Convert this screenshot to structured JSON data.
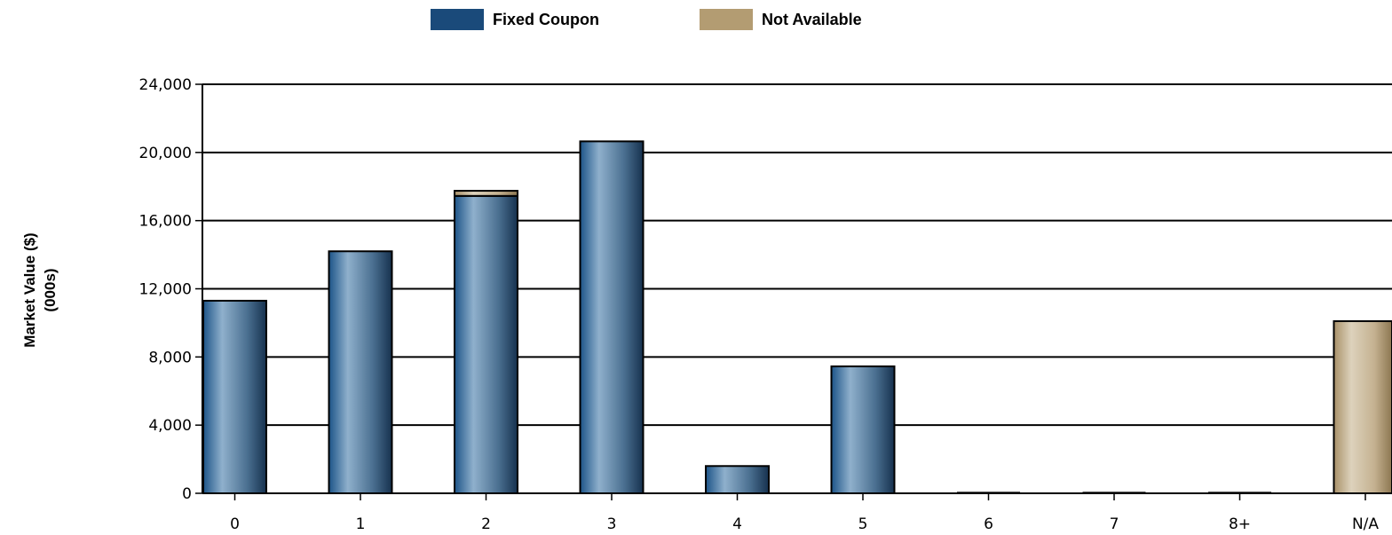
{
  "legend": {
    "items": [
      {
        "label": "Fixed Coupon",
        "color": "#1a4a7a"
      },
      {
        "label": "Not Available",
        "color": "#b39c72"
      }
    ]
  },
  "chart_data": {
    "type": "bar",
    "stacked": true,
    "categories": [
      "0",
      "1",
      "2",
      "3",
      "4",
      "5",
      "6",
      "7",
      "8+",
      "N/A"
    ],
    "series": [
      {
        "name": "Fixed Coupon",
        "color": "#1a4a7a",
        "values": [
          11300,
          14200,
          17450,
          20650,
          1600,
          7450,
          0,
          0,
          0,
          0
        ]
      },
      {
        "name": "Not Available",
        "color": "#b39c72",
        "values": [
          0,
          0,
          300,
          0,
          0,
          0,
          0,
          0,
          0,
          10100
        ]
      }
    ],
    "ylabel_line1": "Market Value ($)",
    "ylabel_line2": "(000s)",
    "ylim": [
      0,
      24000
    ],
    "yticks": [
      "0",
      "4,000",
      "8,000",
      "12,000",
      "16,000",
      "20,000",
      "24,000"
    ],
    "ytick_values": [
      0,
      4000,
      8000,
      12000,
      16000,
      20000,
      24000
    ],
    "grid": true
  }
}
